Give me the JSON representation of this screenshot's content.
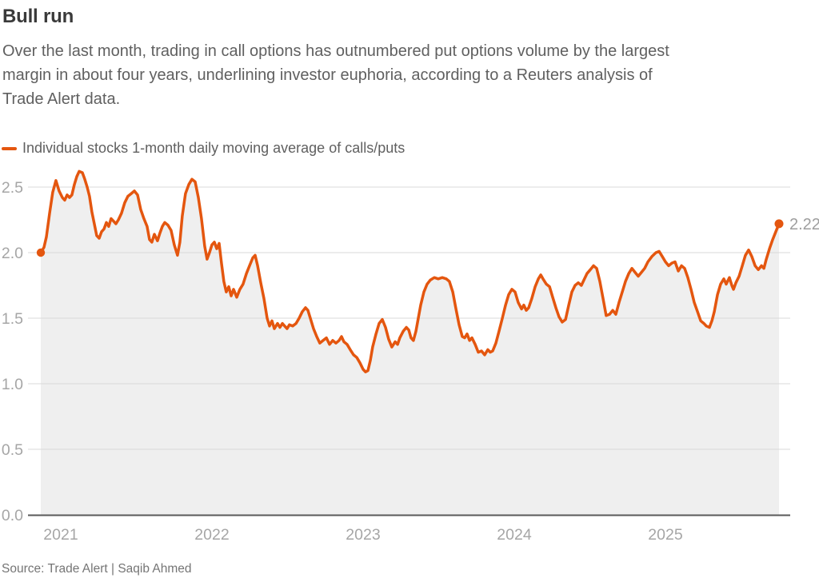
{
  "header": {
    "title": "Bull run",
    "subtitle_lines": [
      "Over the last month, trading in call options has outnumbered put options volume by the largest",
      "margin in about four years, underlining investor euphoria, according to a Reuters analysis of",
      "Trade Alert data."
    ]
  },
  "legend": {
    "label": "Individual stocks 1-month daily moving average of calls/puts"
  },
  "footer": {
    "source": "Source: Trade Alert | Saqib Ahmed"
  },
  "colors": {
    "accent_orange": "#e4560f",
    "area_fill": "#efefef",
    "gridline": "#d9d9d9",
    "axis_line": "#595959",
    "tick_label": "#a6a6a6",
    "end_label": "#9e9e9e",
    "title_text": "#3a3a3a",
    "body_text": "#606060",
    "source_text": "#757575"
  },
  "chart_data": {
    "type": "area",
    "title": "Bull run",
    "series_name": "Individual stocks 1-month daily moving average of calls/puts",
    "x_unit": "decimal_year",
    "xlim": [
      2020.868,
      2025.751
    ],
    "ylim": [
      0,
      2.75
    ],
    "grid": true,
    "legend_position": "top-left",
    "start_value": 2.0,
    "end_value": 2.22,
    "end_label": "2.22",
    "y_ticks": [
      {
        "value": 0.0,
        "label": "0.0"
      },
      {
        "value": 0.5,
        "label": "0.5"
      },
      {
        "value": 1.0,
        "label": "1.0"
      },
      {
        "value": 1.5,
        "label": "1.5"
      },
      {
        "value": 2.0,
        "label": "2.0"
      },
      {
        "value": 2.5,
        "label": "2.5"
      }
    ],
    "x_ticks": [
      {
        "value": 2021,
        "label": "2021"
      },
      {
        "value": 2022,
        "label": "2022"
      },
      {
        "value": 2023,
        "label": "2023"
      },
      {
        "value": 2024,
        "label": "2024"
      },
      {
        "value": 2025,
        "label": "2025"
      }
    ],
    "points": [
      [
        2020.868,
        2.0
      ],
      [
        2020.889,
        2.04
      ],
      [
        2020.905,
        2.12
      ],
      [
        2020.926,
        2.3
      ],
      [
        2020.947,
        2.46
      ],
      [
        2020.968,
        2.55
      ],
      [
        2020.989,
        2.47
      ],
      [
        2021.011,
        2.42
      ],
      [
        2021.026,
        2.4
      ],
      [
        2021.042,
        2.44
      ],
      [
        2021.058,
        2.42
      ],
      [
        2021.074,
        2.44
      ],
      [
        2021.09,
        2.52
      ],
      [
        2021.106,
        2.58
      ],
      [
        2021.122,
        2.62
      ],
      [
        2021.143,
        2.61
      ],
      [
        2021.159,
        2.56
      ],
      [
        2021.175,
        2.5
      ],
      [
        2021.19,
        2.43
      ],
      [
        2021.206,
        2.31
      ],
      [
        2021.222,
        2.22
      ],
      [
        2021.238,
        2.13
      ],
      [
        2021.254,
        2.11
      ],
      [
        2021.27,
        2.16
      ],
      [
        2021.286,
        2.18
      ],
      [
        2021.302,
        2.23
      ],
      [
        2021.317,
        2.2
      ],
      [
        2021.333,
        2.26
      ],
      [
        2021.349,
        2.24
      ],
      [
        2021.365,
        2.22
      ],
      [
        2021.381,
        2.25
      ],
      [
        2021.402,
        2.3
      ],
      [
        2021.423,
        2.38
      ],
      [
        2021.444,
        2.43
      ],
      [
        2021.466,
        2.45
      ],
      [
        2021.487,
        2.47
      ],
      [
        2021.508,
        2.44
      ],
      [
        2021.529,
        2.33
      ],
      [
        2021.55,
        2.26
      ],
      [
        2021.571,
        2.2
      ],
      [
        2021.587,
        2.1
      ],
      [
        2021.603,
        2.08
      ],
      [
        2021.619,
        2.14
      ],
      [
        2021.64,
        2.09
      ],
      [
        2021.656,
        2.15
      ],
      [
        2021.672,
        2.2
      ],
      [
        2021.688,
        2.23
      ],
      [
        2021.709,
        2.21
      ],
      [
        2021.73,
        2.17
      ],
      [
        2021.751,
        2.06
      ],
      [
        2021.772,
        1.98
      ],
      [
        2021.788,
        2.08
      ],
      [
        2021.804,
        2.28
      ],
      [
        2021.825,
        2.45
      ],
      [
        2021.847,
        2.52
      ],
      [
        2021.868,
        2.56
      ],
      [
        2021.889,
        2.54
      ],
      [
        2021.91,
        2.42
      ],
      [
        2021.931,
        2.26
      ],
      [
        2021.952,
        2.05
      ],
      [
        2021.968,
        1.95
      ],
      [
        2021.984,
        2.0
      ],
      [
        2022.0,
        2.06
      ],
      [
        2022.016,
        2.08
      ],
      [
        2022.032,
        2.03
      ],
      [
        2022.048,
        2.07
      ],
      [
        2022.063,
        1.92
      ],
      [
        2022.079,
        1.78
      ],
      [
        2022.095,
        1.7
      ],
      [
        2022.111,
        1.74
      ],
      [
        2022.127,
        1.67
      ],
      [
        2022.143,
        1.72
      ],
      [
        2022.164,
        1.66
      ],
      [
        2022.185,
        1.72
      ],
      [
        2022.206,
        1.76
      ],
      [
        2022.228,
        1.84
      ],
      [
        2022.249,
        1.9
      ],
      [
        2022.27,
        1.96
      ],
      [
        2022.286,
        1.98
      ],
      [
        2022.302,
        1.9
      ],
      [
        2022.323,
        1.77
      ],
      [
        2022.344,
        1.65
      ],
      [
        2022.365,
        1.5
      ],
      [
        2022.381,
        1.44
      ],
      [
        2022.397,
        1.48
      ],
      [
        2022.413,
        1.42
      ],
      [
        2022.434,
        1.46
      ],
      [
        2022.45,
        1.43
      ],
      [
        2022.466,
        1.46
      ],
      [
        2022.481,
        1.44
      ],
      [
        2022.497,
        1.42
      ],
      [
        2022.513,
        1.45
      ],
      [
        2022.534,
        1.44
      ],
      [
        2022.556,
        1.46
      ],
      [
        2022.577,
        1.5
      ],
      [
        2022.598,
        1.55
      ],
      [
        2022.619,
        1.58
      ],
      [
        2022.635,
        1.56
      ],
      [
        2022.651,
        1.5
      ],
      [
        2022.672,
        1.42
      ],
      [
        2022.693,
        1.36
      ],
      [
        2022.714,
        1.31
      ],
      [
        2022.735,
        1.33
      ],
      [
        2022.757,
        1.35
      ],
      [
        2022.778,
        1.3
      ],
      [
        2022.799,
        1.33
      ],
      [
        2022.82,
        1.31
      ],
      [
        2022.841,
        1.33
      ],
      [
        2022.857,
        1.36
      ],
      [
        2022.873,
        1.32
      ],
      [
        2022.894,
        1.3
      ],
      [
        2022.915,
        1.26
      ],
      [
        2022.937,
        1.22
      ],
      [
        2022.958,
        1.2
      ],
      [
        2022.979,
        1.16
      ],
      [
        2023.0,
        1.11
      ],
      [
        2023.016,
        1.09
      ],
      [
        2023.032,
        1.1
      ],
      [
        2023.048,
        1.18
      ],
      [
        2023.063,
        1.28
      ],
      [
        2023.085,
        1.38
      ],
      [
        2023.106,
        1.46
      ],
      [
        2023.127,
        1.49
      ],
      [
        2023.148,
        1.43
      ],
      [
        2023.169,
        1.34
      ],
      [
        2023.19,
        1.28
      ],
      [
        2023.212,
        1.32
      ],
      [
        2023.228,
        1.3
      ],
      [
        2023.243,
        1.35
      ],
      [
        2023.265,
        1.4
      ],
      [
        2023.286,
        1.43
      ],
      [
        2023.302,
        1.41
      ],
      [
        2023.317,
        1.35
      ],
      [
        2023.333,
        1.33
      ],
      [
        2023.349,
        1.4
      ],
      [
        2023.365,
        1.5
      ],
      [
        2023.381,
        1.6
      ],
      [
        2023.402,
        1.7
      ],
      [
        2023.423,
        1.76
      ],
      [
        2023.444,
        1.79
      ],
      [
        2023.471,
        1.81
      ],
      [
        2023.497,
        1.8
      ],
      [
        2023.524,
        1.81
      ],
      [
        2023.55,
        1.8
      ],
      [
        2023.571,
        1.78
      ],
      [
        2023.593,
        1.7
      ],
      [
        2023.614,
        1.57
      ],
      [
        2023.635,
        1.45
      ],
      [
        2023.656,
        1.36
      ],
      [
        2023.672,
        1.35
      ],
      [
        2023.688,
        1.38
      ],
      [
        2023.704,
        1.33
      ],
      [
        2023.72,
        1.35
      ],
      [
        2023.741,
        1.3
      ],
      [
        2023.762,
        1.24
      ],
      [
        2023.783,
        1.25
      ],
      [
        2023.804,
        1.22
      ],
      [
        2023.825,
        1.26
      ],
      [
        2023.841,
        1.24
      ],
      [
        2023.857,
        1.25
      ],
      [
        2023.878,
        1.31
      ],
      [
        2023.899,
        1.4
      ],
      [
        2023.921,
        1.5
      ],
      [
        2023.942,
        1.6
      ],
      [
        2023.963,
        1.68
      ],
      [
        2023.984,
        1.72
      ],
      [
        2024.005,
        1.7
      ],
      [
        2024.026,
        1.62
      ],
      [
        2024.048,
        1.57
      ],
      [
        2024.063,
        1.6
      ],
      [
        2024.079,
        1.56
      ],
      [
        2024.095,
        1.58
      ],
      [
        2024.116,
        1.65
      ],
      [
        2024.138,
        1.74
      ],
      [
        2024.159,
        1.8
      ],
      [
        2024.175,
        1.83
      ],
      [
        2024.19,
        1.8
      ],
      [
        2024.212,
        1.76
      ],
      [
        2024.233,
        1.74
      ],
      [
        2024.254,
        1.66
      ],
      [
        2024.275,
        1.58
      ],
      [
        2024.296,
        1.51
      ],
      [
        2024.317,
        1.47
      ],
      [
        2024.339,
        1.49
      ],
      [
        2024.36,
        1.6
      ],
      [
        2024.381,
        1.7
      ],
      [
        2024.402,
        1.75
      ],
      [
        2024.423,
        1.77
      ],
      [
        2024.444,
        1.75
      ],
      [
        2024.46,
        1.79
      ],
      [
        2024.481,
        1.84
      ],
      [
        2024.503,
        1.87
      ],
      [
        2024.524,
        1.9
      ],
      [
        2024.545,
        1.88
      ],
      [
        2024.566,
        1.78
      ],
      [
        2024.587,
        1.65
      ],
      [
        2024.608,
        1.52
      ],
      [
        2024.63,
        1.53
      ],
      [
        2024.651,
        1.56
      ],
      [
        2024.672,
        1.53
      ],
      [
        2024.693,
        1.62
      ],
      [
        2024.714,
        1.7
      ],
      [
        2024.735,
        1.78
      ],
      [
        2024.757,
        1.84
      ],
      [
        2024.778,
        1.88
      ],
      [
        2024.799,
        1.85
      ],
      [
        2024.82,
        1.82
      ],
      [
        2024.841,
        1.85
      ],
      [
        2024.862,
        1.88
      ],
      [
        2024.884,
        1.93
      ],
      [
        2024.91,
        1.97
      ],
      [
        2024.937,
        2.0
      ],
      [
        2024.958,
        2.01
      ],
      [
        2024.979,
        1.97
      ],
      [
        2025.0,
        1.93
      ],
      [
        2025.021,
        1.9
      ],
      [
        2025.042,
        1.92
      ],
      [
        2025.063,
        1.93
      ],
      [
        2025.085,
        1.86
      ],
      [
        2025.106,
        1.9
      ],
      [
        2025.127,
        1.88
      ],
      [
        2025.148,
        1.81
      ],
      [
        2025.169,
        1.72
      ],
      [
        2025.19,
        1.62
      ],
      [
        2025.212,
        1.55
      ],
      [
        2025.233,
        1.48
      ],
      [
        2025.254,
        1.46
      ],
      [
        2025.27,
        1.44
      ],
      [
        2025.291,
        1.43
      ],
      [
        2025.307,
        1.48
      ],
      [
        2025.323,
        1.55
      ],
      [
        2025.344,
        1.68
      ],
      [
        2025.365,
        1.76
      ],
      [
        2025.386,
        1.8
      ],
      [
        2025.402,
        1.76
      ],
      [
        2025.423,
        1.81
      ],
      [
        2025.439,
        1.75
      ],
      [
        2025.45,
        1.72
      ],
      [
        2025.466,
        1.77
      ],
      [
        2025.487,
        1.82
      ],
      [
        2025.508,
        1.9
      ],
      [
        2025.529,
        1.98
      ],
      [
        2025.55,
        2.02
      ],
      [
        2025.571,
        1.97
      ],
      [
        2025.593,
        1.9
      ],
      [
        2025.614,
        1.87
      ],
      [
        2025.635,
        1.9
      ],
      [
        2025.651,
        1.88
      ],
      [
        2025.667,
        1.95
      ],
      [
        2025.688,
        2.03
      ],
      [
        2025.709,
        2.1
      ],
      [
        2025.73,
        2.16
      ],
      [
        2025.751,
        2.22
      ]
    ]
  }
}
